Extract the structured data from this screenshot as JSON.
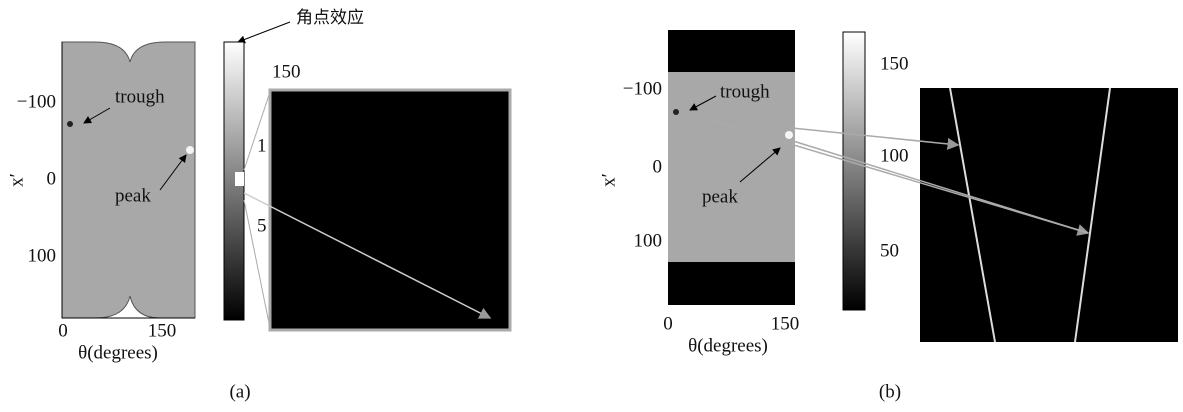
{
  "panel_a": {
    "yticks": [
      "−100",
      "0",
      "100"
    ],
    "xticks": [
      "0",
      "150"
    ],
    "xlabel": "θ(degrees)",
    "ylabel": "x′",
    "annotations": {
      "trough": "trough",
      "peak": "peak",
      "corner": "角点效应"
    },
    "colorbar_ticks": [
      "150",
      "1",
      "5"
    ],
    "caption": "(a)"
  },
  "panel_b": {
    "yticks": [
      "−100",
      "0",
      "100"
    ],
    "xticks": [
      "0",
      "150"
    ],
    "xlabel": "θ(degrees)",
    "ylabel": "x′",
    "annotations": {
      "trough": "trough",
      "peak": "peak"
    },
    "colorbar_ticks": [
      "150",
      "100",
      "50"
    ],
    "caption": "(b)"
  }
}
